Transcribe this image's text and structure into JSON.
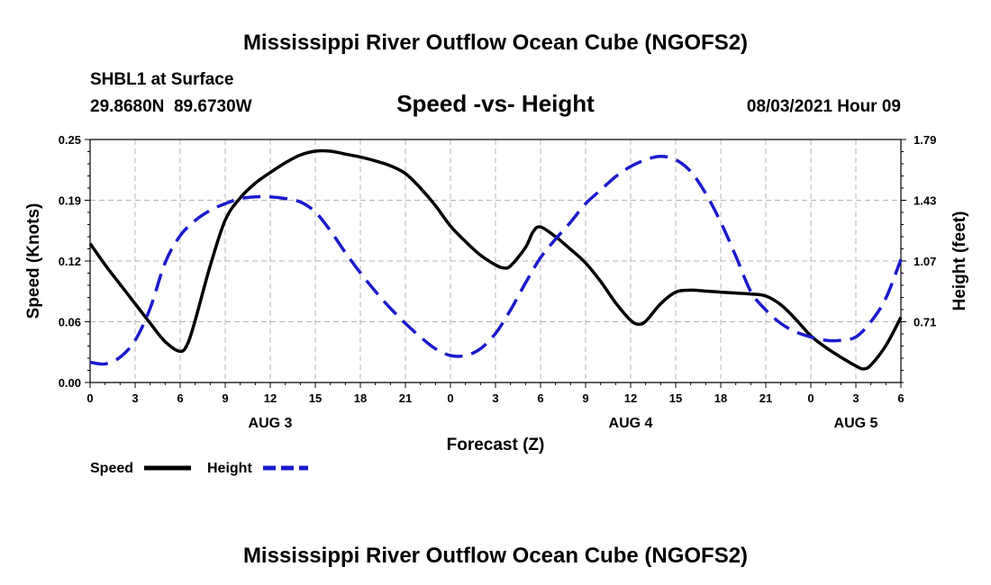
{
  "header": {
    "title": "Mississippi River Outflow Ocean Cube (NGOFS2)",
    "station": "SHBL1 at Surface",
    "coords": "29.8680N  89.6730W",
    "subtitle": "Speed -vs- Height",
    "datetime": "08/03/2021 Hour 09"
  },
  "footer": {
    "title": "Mississippi River Outflow Ocean Cube (NGOFS2)"
  },
  "legend": {
    "speed_label": "Speed",
    "height_label": "Height"
  },
  "colors": {
    "speed": "#000000",
    "height": "#1a1acc",
    "grid": "#b4b4b4"
  },
  "chart_data": {
    "type": "line",
    "title": "Speed -vs- Height",
    "xlabel": "Forecast (Z)",
    "ylabel": "Speed (Knots)",
    "y2label": "Height (feet)",
    "xlim": [
      0,
      54
    ],
    "ylim": [
      0,
      0.25
    ],
    "y2lim": [
      0.35,
      1.79
    ],
    "yticks": [
      "0.00",
      "0.06",
      "0.12",
      "0.19",
      "0.25"
    ],
    "y2ticks": [
      "0.71",
      "1.07",
      "1.43",
      "1.79"
    ],
    "y2tick_values": [
      0.71,
      1.07,
      1.43,
      1.79
    ],
    "xticks": [
      "0",
      "3",
      "6",
      "9",
      "12",
      "15",
      "18",
      "21",
      "0",
      "3",
      "6",
      "9",
      "12",
      "15",
      "18",
      "21",
      "0",
      "3",
      "6"
    ],
    "day_labels": [
      {
        "label": "AUG 3",
        "hour": 12
      },
      {
        "label": "AUG 4",
        "hour": 36
      },
      {
        "label": "AUG 5",
        "hour": 51
      }
    ],
    "grid": true,
    "series": [
      {
        "name": "Speed",
        "axis": "left",
        "style": "solid",
        "points": [
          [
            0,
            0.143
          ],
          [
            1,
            0.121
          ],
          [
            2,
            0.101
          ],
          [
            3,
            0.081
          ],
          [
            4,
            0.061
          ],
          [
            5,
            0.042
          ],
          [
            6,
            0.032
          ],
          [
            6.5,
            0.04
          ],
          [
            7,
            0.064
          ],
          [
            8,
            0.12
          ],
          [
            9,
            0.167
          ],
          [
            10,
            0.19
          ],
          [
            11,
            0.205
          ],
          [
            12,
            0.216
          ],
          [
            13,
            0.226
          ],
          [
            14,
            0.234
          ],
          [
            15,
            0.238
          ],
          [
            16,
            0.238
          ],
          [
            17,
            0.235
          ],
          [
            18,
            0.232
          ],
          [
            19,
            0.228
          ],
          [
            20,
            0.223
          ],
          [
            21,
            0.215
          ],
          [
            22,
            0.2
          ],
          [
            23,
            0.182
          ],
          [
            24,
            0.161
          ],
          [
            25,
            0.145
          ],
          [
            26,
            0.131
          ],
          [
            27,
            0.121
          ],
          [
            27.5,
            0.118
          ],
          [
            28,
            0.12
          ],
          [
            29,
            0.139
          ],
          [
            29.5,
            0.155
          ],
          [
            30,
            0.16
          ],
          [
            31,
            0.15
          ],
          [
            32,
            0.137
          ],
          [
            33,
            0.123
          ],
          [
            34,
            0.104
          ],
          [
            35,
            0.082
          ],
          [
            36,
            0.064
          ],
          [
            36.5,
            0.06
          ],
          [
            37,
            0.063
          ],
          [
            38,
            0.081
          ],
          [
            39,
            0.093
          ],
          [
            40,
            0.095
          ],
          [
            41,
            0.094
          ],
          [
            42,
            0.093
          ],
          [
            43,
            0.092
          ],
          [
            44,
            0.091
          ],
          [
            45,
            0.089
          ],
          [
            46,
            0.08
          ],
          [
            47,
            0.065
          ],
          [
            48,
            0.048
          ],
          [
            49,
            0.036
          ],
          [
            50,
            0.026
          ],
          [
            51,
            0.017
          ],
          [
            51.5,
            0.014
          ],
          [
            52,
            0.018
          ],
          [
            53,
            0.038
          ],
          [
            54,
            0.067
          ]
        ]
      },
      {
        "name": "Height",
        "axis": "right",
        "style": "dashed",
        "points": [
          [
            0,
            0.47
          ],
          [
            1,
            0.46
          ],
          [
            2,
            0.5
          ],
          [
            3,
            0.6
          ],
          [
            4,
            0.79
          ],
          [
            5,
            1.06
          ],
          [
            6,
            1.22
          ],
          [
            7,
            1.31
          ],
          [
            8,
            1.37
          ],
          [
            9,
            1.41
          ],
          [
            10,
            1.44
          ],
          [
            11,
            1.45
          ],
          [
            12,
            1.45
          ],
          [
            13,
            1.44
          ],
          [
            14,
            1.42
          ],
          [
            15,
            1.36
          ],
          [
            16,
            1.25
          ],
          [
            17,
            1.12
          ],
          [
            18,
            1.0
          ],
          [
            19,
            0.89
          ],
          [
            20,
            0.79
          ],
          [
            21,
            0.7
          ],
          [
            22,
            0.62
          ],
          [
            23,
            0.55
          ],
          [
            24,
            0.51
          ],
          [
            25,
            0.51
          ],
          [
            26,
            0.55
          ],
          [
            27,
            0.64
          ],
          [
            28,
            0.78
          ],
          [
            29,
            0.94
          ],
          [
            30,
            1.09
          ],
          [
            31,
            1.2
          ],
          [
            32,
            1.3
          ],
          [
            33,
            1.41
          ],
          [
            34,
            1.49
          ],
          [
            35,
            1.57
          ],
          [
            36,
            1.63
          ],
          [
            37,
            1.67
          ],
          [
            38,
            1.69
          ],
          [
            39,
            1.67
          ],
          [
            40,
            1.6
          ],
          [
            41,
            1.47
          ],
          [
            42,
            1.3
          ],
          [
            43,
            1.1
          ],
          [
            44,
            0.89
          ],
          [
            45,
            0.78
          ],
          [
            46,
            0.7
          ],
          [
            47,
            0.65
          ],
          [
            48,
            0.62
          ],
          [
            49,
            0.6
          ],
          [
            50,
            0.6
          ],
          [
            51,
            0.62
          ],
          [
            52,
            0.71
          ],
          [
            53,
            0.85
          ],
          [
            54,
            1.08
          ]
        ]
      }
    ]
  }
}
